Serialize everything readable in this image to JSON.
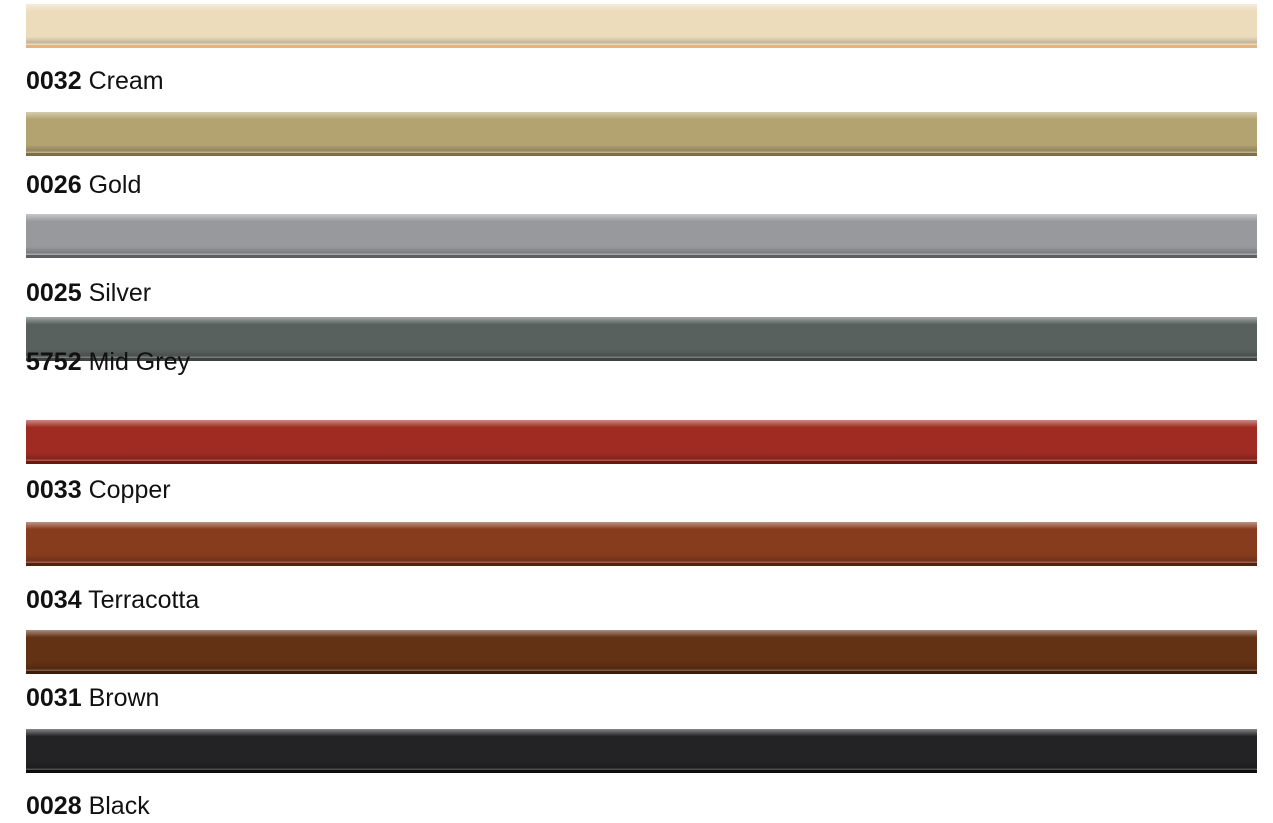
{
  "swatches": [
    {
      "code": "0032",
      "name": "Cream",
      "color": "#ecdcbc",
      "edge": "#e3b27d"
    },
    {
      "code": "0026",
      "name": "Gold",
      "color": "#b3a371",
      "edge": "#7c6e45"
    },
    {
      "code": "0025",
      "name": "Silver",
      "color": "#97999c",
      "edge": "#5c5e62"
    },
    {
      "code": "5752",
      "name": "Mid Grey",
      "color": "#59615e",
      "edge": "#3d4341"
    },
    {
      "code": "0033",
      "name": "Copper",
      "color": "#a02b22",
      "edge": "#6a1810"
    },
    {
      "code": "0034",
      "name": "Terracotta",
      "color": "#873c1e",
      "edge": "#552210"
    },
    {
      "code": "0031",
      "name": "Brown",
      "color": "#633114",
      "edge": "#3c1c0a"
    },
    {
      "code": "0028",
      "name": "Black",
      "color": "#232224",
      "edge": "#0c0c0c"
    }
  ]
}
